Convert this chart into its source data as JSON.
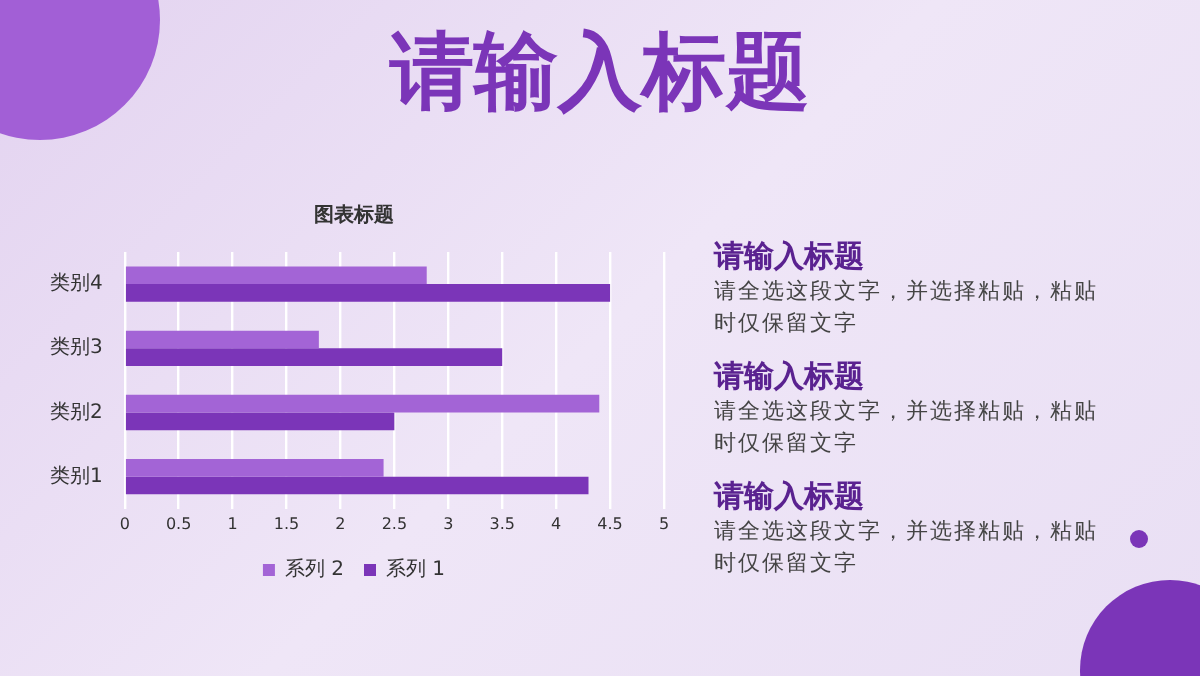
{
  "chart_data": {
    "type": "bar",
    "title": "图表标题",
    "orientation": "horizontal",
    "categories": [
      "类别4",
      "类别3",
      "类别2",
      "类别1"
    ],
    "series": [
      {
        "name": "系列 2",
        "color": "#a364d6",
        "values": [
          2.8,
          1.8,
          4.4,
          2.4
        ]
      },
      {
        "name": "系列 1",
        "color": "#7b35b8",
        "values": [
          4.5,
          3.5,
          2.5,
          4.3
        ]
      }
    ],
    "xlim": [
      0,
      5
    ],
    "xticks": [
      0,
      0.5,
      1,
      1.5,
      2,
      2.5,
      3,
      3.5,
      4,
      4.5,
      5
    ],
    "grid": "x",
    "legend": "bottom",
    "annotations": [
      "请输入标题",
      "请输入标题",
      "请全选这段文字，并选择粘贴，粘贴时仅保留文字",
      "请输入标题",
      "请全选这段文字，并选择粘贴，粘贴时仅保留文字",
      "请输入标题",
      "请全选这段文字，并选择粘贴，粘贴时仅保留文字"
    ]
  }
}
